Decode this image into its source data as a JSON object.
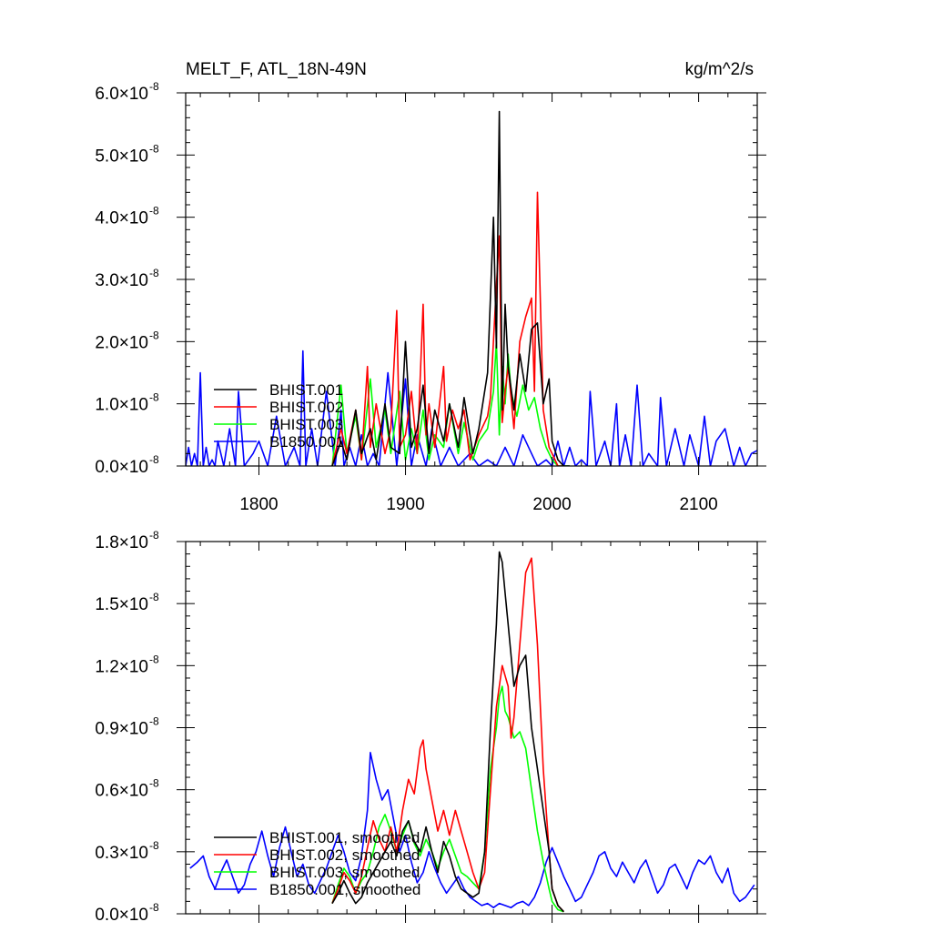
{
  "figure": {
    "title_left": "MELT_F, ATL_18N-49N",
    "title_right": "kg/m^2/s"
  },
  "chart_data": [
    {
      "type": "line",
      "title": "MELT_F, ATL_18N-49N",
      "units": "kg/m^2/s",
      "xlim": [
        1750,
        2140
      ],
      "ylim": [
        0,
        6e-08
      ],
      "x_ticks": [
        1800,
        1900,
        2000,
        2100
      ],
      "x_tick_labels": [
        "1800",
        "1900",
        "2000",
        "2100"
      ],
      "y_ticks": [
        0,
        1e-08,
        2e-08,
        3e-08,
        4e-08,
        5e-08,
        6e-08
      ],
      "y_tick_labels": [
        {
          "mantissa": "0.0",
          "exponent": "-8"
        },
        {
          "mantissa": "1.0",
          "exponent": "-8"
        },
        {
          "mantissa": "2.0",
          "exponent": "-8"
        },
        {
          "mantissa": "3.0",
          "exponent": "-8"
        },
        {
          "mantissa": "4.0",
          "exponent": "-8"
        },
        {
          "mantissa": "5.0",
          "exponent": "-8"
        },
        {
          "mantissa": "6.0",
          "exponent": "-8"
        }
      ],
      "legend_position": "bottom-left",
      "series": [
        {
          "name": "B1850.001",
          "color": "#0000ff",
          "x": [
            1750,
            1752,
            1754,
            1756,
            1758,
            1760,
            1762,
            1764,
            1766,
            1768,
            1770,
            1772,
            1776,
            1780,
            1784,
            1786,
            1790,
            1796,
            1800,
            1806,
            1812,
            1818,
            1824,
            1828,
            1830,
            1832,
            1836,
            1840,
            1846,
            1852,
            1856,
            1858,
            1862,
            1866,
            1870,
            1874,
            1878,
            1882,
            1888,
            1894,
            1900,
            1904,
            1908,
            1914,
            1918,
            1924,
            1930,
            1936,
            1944,
            1950,
            1956,
            1962,
            1968,
            1974,
            1980,
            1986,
            1990,
            1996,
            2000,
            2004,
            2008,
            2012,
            2016,
            2020,
            2024,
            2026,
            2030,
            2036,
            2040,
            2044,
            2046,
            2050,
            2054,
            2058,
            2062,
            2066,
            2072,
            2074,
            2078,
            2084,
            2090,
            2094,
            2100,
            2104,
            2108,
            2112,
            2118,
            2124,
            2128,
            2132,
            2136,
            2140
          ],
          "y": [
            0,
            3e-09,
            0,
            2e-09,
            0,
            1.5e-08,
            0,
            3e-09,
            0,
            1e-09,
            0,
            4e-09,
            0,
            6e-09,
            0,
            1.2e-08,
            0,
            2e-09,
            4e-09,
            0,
            8e-09,
            0,
            3e-09,
            0,
            1.85e-08,
            0,
            6e-09,
            0,
            1.2e-08,
            0,
            9e-09,
            0,
            3e-09,
            0,
            5e-09,
            0,
            2e-09,
            0,
            1.5e-08,
            0,
            1.4e-08,
            0,
            5e-09,
            0,
            6e-09,
            0,
            3e-09,
            0,
            2e-09,
            0,
            1e-09,
            0,
            3e-09,
            0,
            5e-09,
            2e-09,
            0,
            1e-09,
            0,
            4e-09,
            0,
            3e-09,
            0,
            1e-09,
            0,
            1.2e-08,
            0,
            4e-09,
            0,
            1e-08,
            0,
            5e-09,
            0,
            1.3e-08,
            0,
            2e-09,
            0,
            1.1e-08,
            0,
            6e-09,
            0,
            5e-09,
            0,
            8e-09,
            0,
            4e-09,
            6e-09,
            0,
            3e-09,
            0,
            2e-09,
            2.5e-09
          ]
        },
        {
          "name": "BHIST.003",
          "color": "#00ff00",
          "x": [
            1850,
            1856,
            1860,
            1866,
            1870,
            1876,
            1880,
            1886,
            1890,
            1896,
            1900,
            1904,
            1908,
            1912,
            1916,
            1920,
            1926,
            1930,
            1936,
            1940,
            1946,
            1950,
            1956,
            1960,
            1962,
            1964,
            1966,
            1968,
            1970,
            1972,
            1976,
            1980,
            1984,
            1988,
            1992,
            1996,
            2000,
            2004,
            2008,
            2012
          ],
          "y": [
            0,
            1.3e-08,
            2e-09,
            8e-09,
            1e-09,
            1.4e-08,
            3e-09,
            9e-09,
            2e-09,
            1.2e-08,
            1e-09,
            6e-09,
            2e-09,
            9e-09,
            1e-09,
            5e-09,
            3e-09,
            1e-08,
            2e-09,
            7e-09,
            1e-09,
            4e-09,
            6e-09,
            1.2e-08,
            2e-08,
            5e-09,
            1.6e-08,
            1e-08,
            1.8e-08,
            1.2e-08,
            8e-09,
            1.3e-08,
            9e-09,
            1.1e-08,
            6e-09,
            3e-09,
            1e-09,
            0,
            0,
            0
          ]
        },
        {
          "name": "BHIST.002",
          "color": "#ff0000",
          "x": [
            1850,
            1856,
            1860,
            1866,
            1870,
            1874,
            1876,
            1880,
            1886,
            1890,
            1894,
            1896,
            1900,
            1904,
            1908,
            1912,
            1914,
            1916,
            1920,
            1926,
            1928,
            1932,
            1936,
            1940,
            1944,
            1950,
            1956,
            1958,
            1962,
            1964,
            1966,
            1968,
            1970,
            1974,
            1978,
            1982,
            1986,
            1988,
            1990,
            1994,
            1998,
            2000,
            2004,
            2008
          ],
          "y": [
            0,
            6e-09,
            2e-09,
            9e-09,
            1e-09,
            1.6e-08,
            3e-09,
            1e-08,
            2e-09,
            6e-09,
            2.5e-08,
            3e-09,
            5e-09,
            1.2e-08,
            2e-09,
            2.6e-08,
            5e-09,
            1e-08,
            3e-09,
            1.6e-08,
            4e-09,
            9e-09,
            6e-09,
            9e-09,
            1e-09,
            5e-09,
            8e-09,
            1.1e-08,
            2.9e-08,
            3.7e-08,
            7e-09,
            1.2e-08,
            1.6e-08,
            6e-09,
            2e-08,
            2.4e-08,
            2.7e-08,
            1.2e-08,
            4.4e-08,
            9e-09,
            3e-09,
            2e-09,
            0,
            0
          ]
        },
        {
          "name": "BHIST.001",
          "color": "#000000",
          "x": [
            1850,
            1856,
            1860,
            1866,
            1870,
            1876,
            1880,
            1886,
            1890,
            1896,
            1900,
            1904,
            1908,
            1912,
            1916,
            1920,
            1926,
            1930,
            1936,
            1940,
            1946,
            1950,
            1956,
            1960,
            1962,
            1964,
            1966,
            1968,
            1970,
            1974,
            1978,
            1982,
            1986,
            1990,
            1994,
            1998,
            2000,
            2004,
            2008,
            2012
          ],
          "y": [
            0,
            4e-09,
            1e-09,
            9e-09,
            2e-09,
            6e-09,
            1e-09,
            1e-08,
            3e-09,
            2e-09,
            2e-08,
            3e-09,
            6e-09,
            1.3e-08,
            2e-09,
            9e-09,
            4e-09,
            1e-08,
            3e-09,
            1.1e-08,
            2e-09,
            6e-09,
            1.5e-08,
            4e-08,
            1.9e-08,
            5.7e-08,
            9e-09,
            2.6e-08,
            1.6e-08,
            9e-09,
            1.8e-08,
            1.2e-08,
            2.2e-08,
            2.3e-08,
            1e-08,
            1.4e-08,
            4e-09,
            1e-09,
            0,
            0
          ]
        }
      ]
    },
    {
      "type": "line",
      "xlim": [
        1750,
        2140
      ],
      "ylim": [
        0,
        1.8e-08
      ],
      "x_ticks": [
        1800,
        1900,
        2000,
        2100
      ],
      "x_tick_labels": [],
      "y_ticks": [
        0,
        3e-09,
        6e-09,
        9e-09,
        1.2e-08,
        1.5e-08,
        1.8e-08
      ],
      "y_tick_labels": [
        {
          "mantissa": "0.0",
          "exponent": "-8"
        },
        {
          "mantissa": "0.3",
          "exponent": "-8"
        },
        {
          "mantissa": "0.6",
          "exponent": "-8"
        },
        {
          "mantissa": "0.9",
          "exponent": "-8"
        },
        {
          "mantissa": "1.2",
          "exponent": "-8"
        },
        {
          "mantissa": "1.5",
          "exponent": "-8"
        },
        {
          "mantissa": "1.8",
          "exponent": "-8"
        }
      ],
      "legend_position": "bottom-left",
      "series": [
        {
          "name": "B1850.001, smoothed",
          "color": "#0000ff",
          "x": [
            1753,
            1758,
            1762,
            1766,
            1770,
            1774,
            1778,
            1782,
            1786,
            1790,
            1794,
            1798,
            1802,
            1806,
            1810,
            1814,
            1818,
            1822,
            1826,
            1830,
            1834,
            1838,
            1842,
            1846,
            1850,
            1854,
            1858,
            1862,
            1866,
            1870,
            1874,
            1876,
            1880,
            1884,
            1888,
            1892,
            1896,
            1900,
            1904,
            1908,
            1912,
            1916,
            1920,
            1924,
            1928,
            1932,
            1936,
            1940,
            1944,
            1948,
            1952,
            1956,
            1960,
            1964,
            1968,
            1972,
            1976,
            1980,
            1984,
            1988,
            1992,
            1996,
            2000,
            2004,
            2008,
            2012,
            2016,
            2020,
            2024,
            2028,
            2032,
            2036,
            2040,
            2044,
            2048,
            2052,
            2056,
            2060,
            2064,
            2068,
            2072,
            2076,
            2080,
            2084,
            2088,
            2092,
            2096,
            2100,
            2104,
            2108,
            2112,
            2116,
            2120,
            2124,
            2128,
            2132,
            2136,
            2138
          ],
          "y": [
            2.2e-09,
            2.5e-09,
            2.8e-09,
            1.8e-09,
            1.2e-09,
            2e-09,
            2.6e-09,
            1.8e-09,
            1e-09,
            1.4e-09,
            2.4e-09,
            3e-09,
            4e-09,
            2.8e-09,
            1.8e-09,
            3.2e-09,
            4.2e-09,
            3e-09,
            1.8e-09,
            2.4e-09,
            1.4e-09,
            1e-09,
            1.6e-09,
            2.2e-09,
            3e-09,
            3.8e-09,
            3e-09,
            2e-09,
            1.6e-09,
            2.8e-09,
            5e-09,
            7.8e-09,
            6.5e-09,
            5.5e-09,
            6e-09,
            4.5e-09,
            3e-09,
            3.8e-09,
            2.5e-09,
            1.5e-09,
            2e-09,
            3e-09,
            2.2e-09,
            1.5e-09,
            1e-09,
            1.4e-09,
            1.8e-09,
            1.2e-09,
            8e-10,
            6e-10,
            4e-10,
            5e-10,
            3e-10,
            5e-10,
            4e-10,
            3e-10,
            5e-10,
            6e-10,
            4e-10,
            8e-10,
            1.5e-09,
            2.5e-09,
            3.2e-09,
            2.5e-09,
            1.8e-09,
            1.2e-09,
            6e-10,
            8e-10,
            1.4e-09,
            2e-09,
            2.8e-09,
            3e-09,
            2.2e-09,
            1.8e-09,
            2.5e-09,
            2e-09,
            1.5e-09,
            2.2e-09,
            2.6e-09,
            1.8e-09,
            1e-09,
            1.4e-09,
            2.2e-09,
            2.4e-09,
            1.8e-09,
            1.2e-09,
            2e-09,
            2.6e-09,
            2.4e-09,
            2.8e-09,
            2e-09,
            1.5e-09,
            2.2e-09,
            1e-09,
            6e-10,
            8e-10,
            1.2e-09,
            1.4e-09
          ]
        },
        {
          "name": "BHIST.003, smoothed",
          "color": "#00ff00",
          "x": [
            1850,
            1854,
            1858,
            1862,
            1866,
            1870,
            1874,
            1878,
            1882,
            1886,
            1890,
            1894,
            1898,
            1902,
            1906,
            1910,
            1914,
            1918,
            1922,
            1926,
            1930,
            1934,
            1938,
            1942,
            1946,
            1950,
            1954,
            1956,
            1958,
            1962,
            1964,
            1966,
            1968,
            1970,
            1974,
            1978,
            1982,
            1986,
            1990,
            1994,
            1998,
            2000,
            2004,
            2008
          ],
          "y": [
            5e-10,
            1.4e-09,
            2.2e-09,
            1.8e-09,
            1e-09,
            1.6e-09,
            2e-09,
            3e-09,
            4.2e-09,
            4.8e-09,
            4e-09,
            3e-09,
            3.8e-09,
            4.5e-09,
            3.4e-09,
            2.8e-09,
            3.6e-09,
            3e-09,
            2.2e-09,
            3e-09,
            3.6e-09,
            2.8e-09,
            2e-09,
            1.8e-09,
            1.5e-09,
            1.2e-09,
            3e-09,
            5e-09,
            7e-09,
            9e-09,
            1.05e-08,
            1.1e-08,
            9.8e-09,
            9.5e-09,
            8.5e-09,
            8.8e-09,
            8e-09,
            6e-09,
            4e-09,
            2.5e-09,
            1.2e-09,
            6e-10,
            2e-10,
            1e-10
          ]
        },
        {
          "name": "BHIST.002, smoothed",
          "color": "#ff0000",
          "x": [
            1850,
            1854,
            1858,
            1862,
            1866,
            1870,
            1874,
            1878,
            1882,
            1886,
            1890,
            1894,
            1898,
            1902,
            1906,
            1910,
            1912,
            1914,
            1918,
            1922,
            1926,
            1930,
            1934,
            1938,
            1942,
            1946,
            1950,
            1954,
            1958,
            1962,
            1966,
            1970,
            1972,
            1974,
            1978,
            1982,
            1986,
            1990,
            1994,
            1998,
            2000,
            2004,
            2008
          ],
          "y": [
            5e-10,
            1.2e-09,
            2e-09,
            1.6e-09,
            1e-09,
            1.8e-09,
            3.2e-09,
            4.5e-09,
            3.6e-09,
            3e-09,
            4.2e-09,
            3e-09,
            5e-09,
            6.5e-09,
            5.8e-09,
            8e-09,
            8.4e-09,
            7e-09,
            5.5e-09,
            4e-09,
            5e-09,
            3.8e-09,
            5e-09,
            4e-09,
            3e-09,
            2e-09,
            1.2e-09,
            2e-09,
            6e-09,
            1e-08,
            1.2e-08,
            1.1e-08,
            8.5e-09,
            9.5e-09,
            1.3e-08,
            1.65e-08,
            1.72e-08,
            1.3e-08,
            7e-09,
            3e-09,
            1.2e-09,
            4e-10,
            1e-10
          ]
        },
        {
          "name": "BHIST.001, smoothed",
          "color": "#000000",
          "x": [
            1850,
            1854,
            1858,
            1862,
            1866,
            1870,
            1874,
            1878,
            1882,
            1886,
            1890,
            1894,
            1898,
            1902,
            1906,
            1910,
            1914,
            1918,
            1922,
            1926,
            1930,
            1934,
            1938,
            1942,
            1946,
            1950,
            1954,
            1958,
            1962,
            1964,
            1966,
            1968,
            1970,
            1974,
            1978,
            1982,
            1986,
            1990,
            1994,
            1998,
            2000,
            2004,
            2008
          ],
          "y": [
            5e-10,
            1e-09,
            1.6e-09,
            1e-09,
            5e-10,
            8e-10,
            1.5e-09,
            2e-09,
            2.5e-09,
            3e-09,
            3.5e-09,
            2.8e-09,
            4e-09,
            4.5e-09,
            3.5e-09,
            3e-09,
            4.2e-09,
            3e-09,
            2e-09,
            3.5e-09,
            2.8e-09,
            1.8e-09,
            1.2e-09,
            1e-09,
            8e-10,
            1e-09,
            3e-09,
            9e-09,
            1.4e-08,
            1.75e-08,
            1.7e-08,
            1.55e-08,
            1.4e-08,
            1.1e-08,
            1.2e-08,
            1.25e-08,
            9e-09,
            7e-09,
            5e-09,
            3e-09,
            1.2e-09,
            4e-10,
            1e-10
          ]
        }
      ]
    }
  ]
}
